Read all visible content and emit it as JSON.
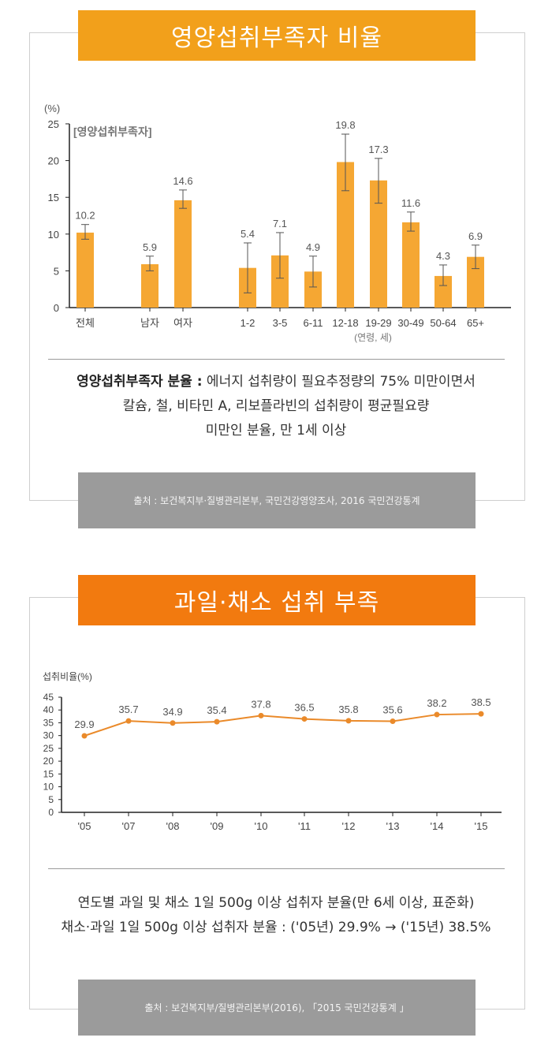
{
  "section1": {
    "title": "영양섭취부족자 비율",
    "unit_label": "(%)",
    "legend_label": "[영양섭취부족자]",
    "note_bold": "영양섭취부족자 분율 :",
    "note_line1": " 에너지 섭취량이 필요추정량의 75% 미만이면서",
    "note_line2": "칼슘, 철, 비타민 A, 리보플라빈의 섭취량이 평균필요량",
    "note_line3": "미만인 분율, 만 1세 이상",
    "source": "출처 : 보건복지부·질병관리본부, 국민건강영양조사, 2016 국민건강통계"
  },
  "section2": {
    "title": "과일·채소 섭취 부족",
    "note_line1": "연도별 과일 및 채소 1일 500g 이상 섭취자 분율(만 6세 이상, 표준화)",
    "note_line2": "채소·과일 1일 500g 이상 섭취자 분율 : ('05년) 29.9% → ('15년) 38.5%",
    "source": "출처 : 보건복지부/질병관리본부(2016), 「2015 국민건강통계 」"
  },
  "chart_data": [
    {
      "type": "bar",
      "title": "영양섭취부족자 비율",
      "ylabel": "(%)",
      "xlabel": "(연령, 세)",
      "ylim": [
        0,
        25
      ],
      "yticks": [
        0,
        5,
        10,
        15,
        20,
        25
      ],
      "bar_color": "#f5a733",
      "categories": [
        "전체",
        "남자",
        "여자",
        "1-2",
        "3-5",
        "6-11",
        "12-18",
        "19-29",
        "30-49",
        "50-64",
        "65+"
      ],
      "values": [
        10.2,
        5.9,
        14.6,
        5.4,
        7.1,
        4.9,
        19.8,
        17.3,
        11.6,
        4.3,
        6.9
      ],
      "value_labels": [
        "10.2",
        "5.9",
        "14.6",
        "5.4",
        "7.1",
        "4.9",
        "19.8",
        "17.3",
        "11.6",
        "4.3",
        "6.9"
      ],
      "error_low": [
        9.3,
        5.0,
        13.5,
        2.0,
        4.0,
        2.8,
        15.9,
        14.2,
        10.4,
        3.0,
        5.3
      ],
      "error_high": [
        11.3,
        7.0,
        16.0,
        8.8,
        10.2,
        7.0,
        23.6,
        20.3,
        13.0,
        5.8,
        8.5
      ]
    },
    {
      "type": "line",
      "title": "과일·채소 섭취 부족",
      "ylabel": "섭취비율(%)",
      "ylim": [
        0,
        45
      ],
      "yticks": [
        0,
        5,
        10,
        15,
        20,
        25,
        30,
        35,
        40,
        45
      ],
      "line_color": "#ea8a2a",
      "categories": [
        "'05",
        "'07",
        "'08",
        "'09",
        "'10",
        "'11",
        "'12",
        "'13",
        "'14",
        "'15"
      ],
      "values": [
        29.9,
        35.7,
        34.9,
        35.4,
        37.8,
        36.5,
        35.8,
        35.6,
        38.2,
        38.5
      ],
      "value_labels": [
        "29.9",
        "35.7",
        "34.9",
        "35.4",
        "37.8",
        "36.5",
        "35.8",
        "35.6",
        "38.2",
        "38.5"
      ]
    }
  ]
}
